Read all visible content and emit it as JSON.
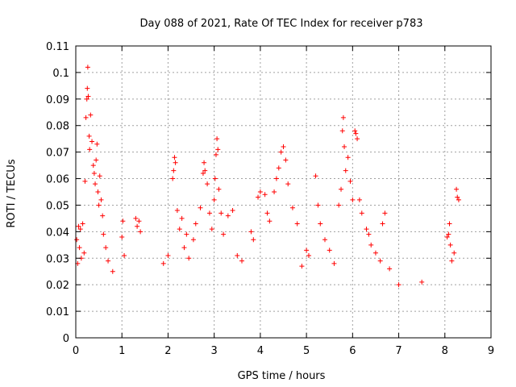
{
  "chart_data": {
    "type": "scatter",
    "title": "Day 088 of 2021, Rate Of TEC Index for receiver p783",
    "xlabel": "GPS time / hours",
    "ylabel": "ROTI / TECUs",
    "xlim": [
      0,
      9
    ],
    "ylim": [
      0,
      0.11
    ],
    "grid": true,
    "marker": "+",
    "color": "#ff0000",
    "x_ticks": [
      0,
      1,
      2,
      3,
      4,
      5,
      6,
      7,
      8,
      9
    ],
    "x_tick_labels": [
      "0",
      "1",
      "2",
      "3",
      "4",
      "5",
      "6",
      "7",
      "8",
      "9"
    ],
    "y_ticks": [
      0,
      0.01,
      0.02,
      0.03,
      0.04,
      0.05,
      0.06,
      0.07,
      0.08,
      0.09,
      0.1,
      0.11
    ],
    "y_tick_labels": [
      "0",
      "0.01",
      "0.02",
      "0.03",
      "0.04",
      "0.05",
      "0.06",
      "0.07",
      "0.08",
      "0.09",
      "0.1",
      "0.11"
    ],
    "series": [
      {
        "name": "ROTI",
        "points": [
          [
            0.02,
            0.037
          ],
          [
            0.04,
            0.028
          ],
          [
            0.06,
            0.042
          ],
          [
            0.08,
            0.034
          ],
          [
            0.1,
            0.041
          ],
          [
            0.12,
            0.03
          ],
          [
            0.15,
            0.043
          ],
          [
            0.18,
            0.032
          ],
          [
            0.2,
            0.059
          ],
          [
            0.22,
            0.083
          ],
          [
            0.24,
            0.09
          ],
          [
            0.25,
            0.094
          ],
          [
            0.26,
            0.102
          ],
          [
            0.27,
            0.091
          ],
          [
            0.29,
            0.076
          ],
          [
            0.3,
            0.071
          ],
          [
            0.32,
            0.084
          ],
          [
            0.35,
            0.074
          ],
          [
            0.38,
            0.065
          ],
          [
            0.4,
            0.062
          ],
          [
            0.42,
            0.058
          ],
          [
            0.44,
            0.067
          ],
          [
            0.46,
            0.073
          ],
          [
            0.48,
            0.055
          ],
          [
            0.5,
            0.05
          ],
          [
            0.52,
            0.061
          ],
          [
            0.55,
            0.052
          ],
          [
            0.58,
            0.046
          ],
          [
            0.6,
            0.039
          ],
          [
            0.65,
            0.034
          ],
          [
            0.7,
            0.029
          ],
          [
            0.8,
            0.025
          ],
          [
            1.0,
            0.038
          ],
          [
            1.02,
            0.044
          ],
          [
            1.05,
            0.031
          ],
          [
            1.3,
            0.045
          ],
          [
            1.33,
            0.042
          ],
          [
            1.37,
            0.044
          ],
          [
            1.4,
            0.04
          ],
          [
            1.9,
            0.028
          ],
          [
            2.0,
            0.031
          ],
          [
            2.1,
            0.06
          ],
          [
            2.12,
            0.063
          ],
          [
            2.14,
            0.068
          ],
          [
            2.16,
            0.066
          ],
          [
            2.2,
            0.048
          ],
          [
            2.25,
            0.041
          ],
          [
            2.3,
            0.045
          ],
          [
            2.35,
            0.034
          ],
          [
            2.4,
            0.039
          ],
          [
            2.45,
            0.03
          ],
          [
            2.55,
            0.037
          ],
          [
            2.6,
            0.043
          ],
          [
            2.7,
            0.049
          ],
          [
            2.76,
            0.062
          ],
          [
            2.78,
            0.066
          ],
          [
            2.8,
            0.063
          ],
          [
            2.85,
            0.058
          ],
          [
            2.9,
            0.047
          ],
          [
            2.95,
            0.041
          ],
          [
            3.0,
            0.052
          ],
          [
            3.02,
            0.06
          ],
          [
            3.04,
            0.069
          ],
          [
            3.06,
            0.075
          ],
          [
            3.08,
            0.071
          ],
          [
            3.1,
            0.056
          ],
          [
            3.15,
            0.047
          ],
          [
            3.2,
            0.039
          ],
          [
            3.3,
            0.046
          ],
          [
            3.4,
            0.048
          ],
          [
            3.5,
            0.031
          ],
          [
            3.6,
            0.029
          ],
          [
            3.8,
            0.04
          ],
          [
            3.85,
            0.037
          ],
          [
            3.95,
            0.053
          ],
          [
            4.0,
            0.055
          ],
          [
            4.1,
            0.054
          ],
          [
            4.15,
            0.047
          ],
          [
            4.2,
            0.044
          ],
          [
            4.3,
            0.055
          ],
          [
            4.35,
            0.06
          ],
          [
            4.4,
            0.064
          ],
          [
            4.45,
            0.07
          ],
          [
            4.5,
            0.072
          ],
          [
            4.55,
            0.067
          ],
          [
            4.6,
            0.058
          ],
          [
            4.7,
            0.049
          ],
          [
            4.8,
            0.043
          ],
          [
            4.9,
            0.027
          ],
          [
            5.0,
            0.033
          ],
          [
            5.05,
            0.031
          ],
          [
            5.2,
            0.061
          ],
          [
            5.25,
            0.05
          ],
          [
            5.3,
            0.043
          ],
          [
            5.4,
            0.037
          ],
          [
            5.5,
            0.033
          ],
          [
            5.6,
            0.028
          ],
          [
            5.7,
            0.05
          ],
          [
            5.75,
            0.056
          ],
          [
            5.78,
            0.078
          ],
          [
            5.8,
            0.083
          ],
          [
            5.82,
            0.072
          ],
          [
            5.85,
            0.063
          ],
          [
            5.9,
            0.068
          ],
          [
            5.95,
            0.059
          ],
          [
            6.0,
            0.052
          ],
          [
            6.05,
            0.078
          ],
          [
            6.07,
            0.077
          ],
          [
            6.1,
            0.075
          ],
          [
            6.15,
            0.052
          ],
          [
            6.2,
            0.047
          ],
          [
            6.3,
            0.041
          ],
          [
            6.35,
            0.039
          ],
          [
            6.4,
            0.035
          ],
          [
            6.5,
            0.032
          ],
          [
            6.6,
            0.029
          ],
          [
            6.65,
            0.043
          ],
          [
            6.7,
            0.047
          ],
          [
            6.8,
            0.026
          ],
          [
            7.0,
            0.02
          ],
          [
            7.5,
            0.021
          ],
          [
            8.05,
            0.038
          ],
          [
            8.08,
            0.039
          ],
          [
            8.1,
            0.043
          ],
          [
            8.12,
            0.035
          ],
          [
            8.15,
            0.029
          ],
          [
            8.2,
            0.032
          ],
          [
            8.25,
            0.056
          ],
          [
            8.27,
            0.053
          ],
          [
            8.3,
            0.052
          ]
        ]
      }
    ]
  }
}
